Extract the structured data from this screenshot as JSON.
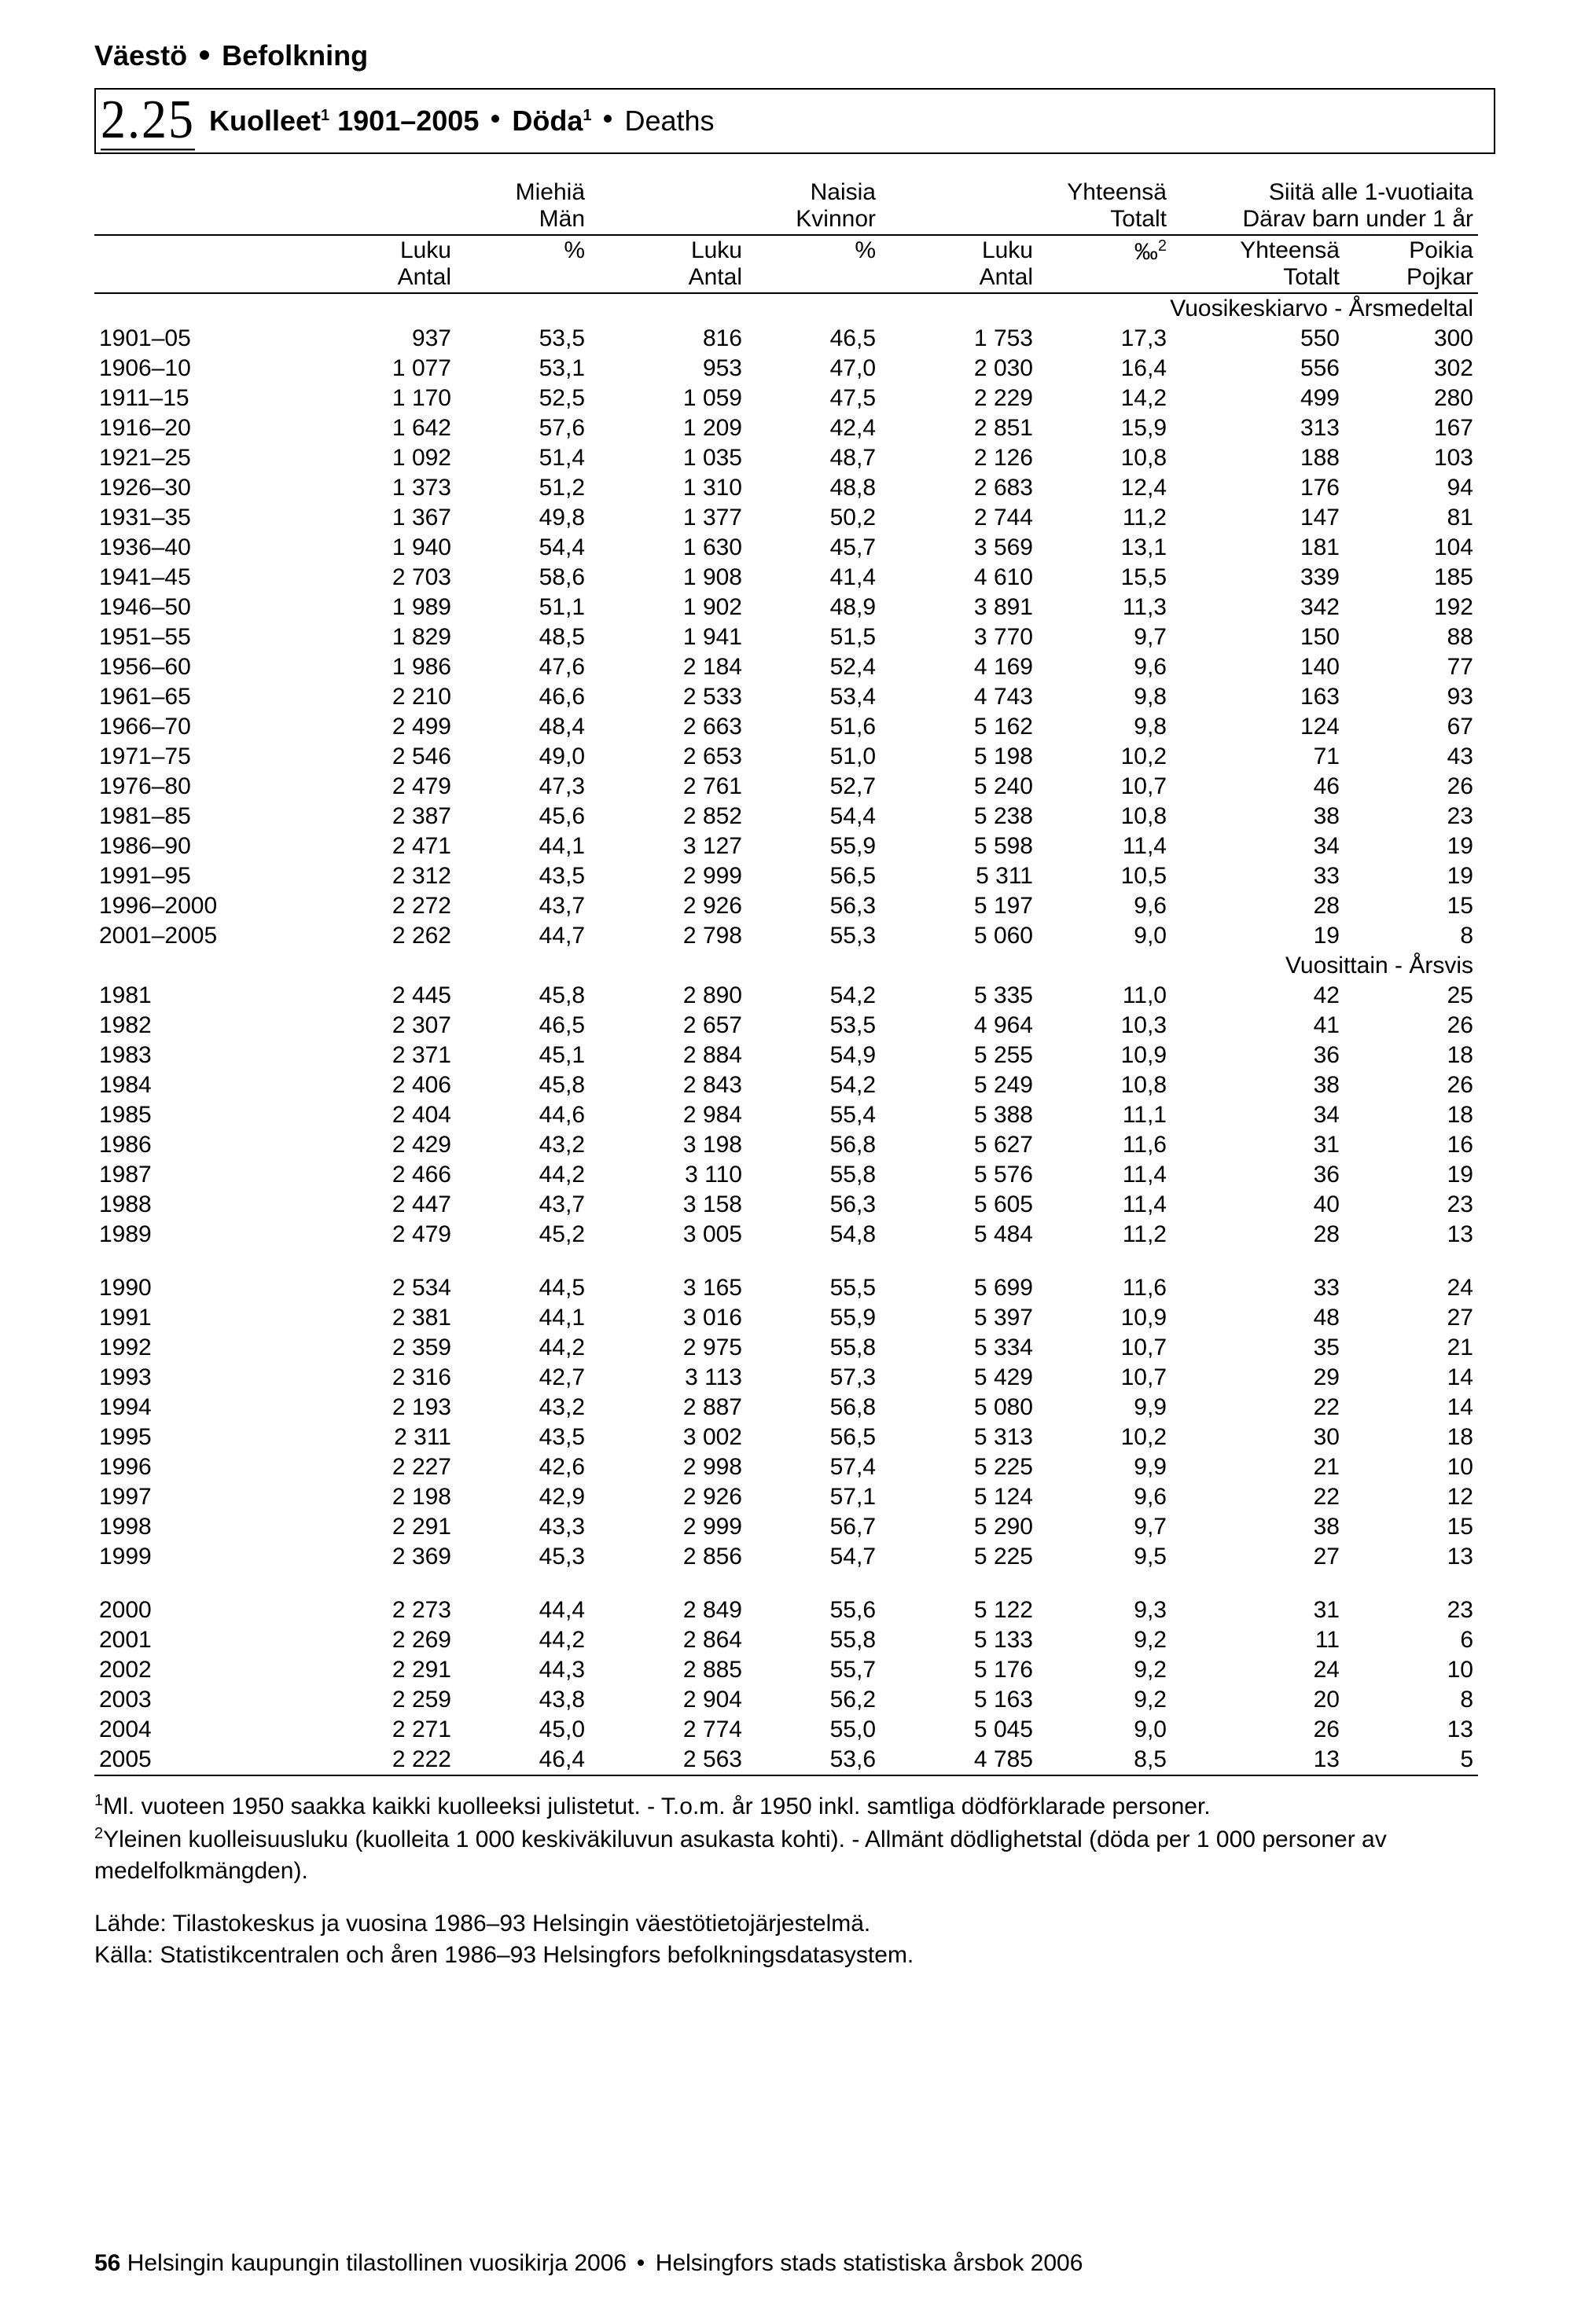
{
  "section_header": {
    "left": "Väestö",
    "right": "Befolkning"
  },
  "table_number": "2.25",
  "title": {
    "part1_bold": "Kuolleet",
    "sup1": "1",
    "part2_bold": " 1901–2005",
    "bullet": "•",
    "part3_bold": "Döda",
    "sup2": "1",
    "part4_normal": "Deaths"
  },
  "headers": {
    "group_men": [
      "Miehiä",
      "Män"
    ],
    "group_women": [
      "Naisia",
      "Kvinnor"
    ],
    "group_total": [
      "Yhteensä",
      "Totalt"
    ],
    "group_under1": [
      "Siitä alle 1-vuotiaita",
      "Därav barn under 1 år"
    ],
    "sub_luku": [
      "Luku",
      "Antal"
    ],
    "sub_pct": "%",
    "sub_permille": "‰",
    "sub_permille_sup": "2",
    "sub_yht": [
      "Yhteensä",
      "Totalt"
    ],
    "sub_poikia": [
      "Poikia",
      "Pojkar"
    ]
  },
  "subheading_avg": "Vuosikeskiarvo - Årsmedeltal",
  "subheading_yearly": "Vuosittain - Årsvis",
  "rows_avg": [
    [
      "1901–05",
      "937",
      "53,5",
      "816",
      "46,5",
      "1 753",
      "17,3",
      "550",
      "300"
    ],
    [
      "1906–10",
      "1 077",
      "53,1",
      "953",
      "47,0",
      "2 030",
      "16,4",
      "556",
      "302"
    ],
    [
      "1911–15",
      "1 170",
      "52,5",
      "1 059",
      "47,5",
      "2 229",
      "14,2",
      "499",
      "280"
    ],
    [
      "1916–20",
      "1 642",
      "57,6",
      "1 209",
      "42,4",
      "2 851",
      "15,9",
      "313",
      "167"
    ],
    [
      "1921–25",
      "1 092",
      "51,4",
      "1 035",
      "48,7",
      "2 126",
      "10,8",
      "188",
      "103"
    ],
    [
      "1926–30",
      "1 373",
      "51,2",
      "1 310",
      "48,8",
      "2 683",
      "12,4",
      "176",
      "94"
    ],
    [
      "1931–35",
      "1 367",
      "49,8",
      "1 377",
      "50,2",
      "2 744",
      "11,2",
      "147",
      "81"
    ],
    [
      "1936–40",
      "1 940",
      "54,4",
      "1 630",
      "45,7",
      "3 569",
      "13,1",
      "181",
      "104"
    ],
    [
      "1941–45",
      "2 703",
      "58,6",
      "1 908",
      "41,4",
      "4 610",
      "15,5",
      "339",
      "185"
    ],
    [
      "1946–50",
      "1 989",
      "51,1",
      "1 902",
      "48,9",
      "3 891",
      "11,3",
      "342",
      "192"
    ],
    [
      "1951–55",
      "1 829",
      "48,5",
      "1 941",
      "51,5",
      "3 770",
      "9,7",
      "150",
      "88"
    ],
    [
      "1956–60",
      "1 986",
      "47,6",
      "2 184",
      "52,4",
      "4 169",
      "9,6",
      "140",
      "77"
    ],
    [
      "1961–65",
      "2 210",
      "46,6",
      "2 533",
      "53,4",
      "4 743",
      "9,8",
      "163",
      "93"
    ],
    [
      "1966–70",
      "2 499",
      "48,4",
      "2 663",
      "51,6",
      "5 162",
      "9,8",
      "124",
      "67"
    ],
    [
      "1971–75",
      "2 546",
      "49,0",
      "2 653",
      "51,0",
      "5 198",
      "10,2",
      "71",
      "43"
    ],
    [
      "1976–80",
      "2 479",
      "47,3",
      "2 761",
      "52,7",
      "5 240",
      "10,7",
      "46",
      "26"
    ],
    [
      "1981–85",
      "2 387",
      "45,6",
      "2 852",
      "54,4",
      "5 238",
      "10,8",
      "38",
      "23"
    ],
    [
      "1986–90",
      "2 471",
      "44,1",
      "3 127",
      "55,9",
      "5 598",
      "11,4",
      "34",
      "19"
    ],
    [
      "1991–95",
      "2 312",
      "43,5",
      "2 999",
      "56,5",
      "5 311",
      "10,5",
      "33",
      "19"
    ],
    [
      "1996–2000",
      "2 272",
      "43,7",
      "2 926",
      "56,3",
      "5 197",
      "9,6",
      "28",
      "15"
    ],
    [
      "2001–2005",
      "2 262",
      "44,7",
      "2 798",
      "55,3",
      "5 060",
      "9,0",
      "19",
      "8"
    ]
  ],
  "rows_yearly": [
    [
      [
        "1981",
        "2 445",
        "45,8",
        "2 890",
        "54,2",
        "5 335",
        "11,0",
        "42",
        "25"
      ],
      [
        "1982",
        "2 307",
        "46,5",
        "2 657",
        "53,5",
        "4 964",
        "10,3",
        "41",
        "26"
      ],
      [
        "1983",
        "2 371",
        "45,1",
        "2 884",
        "54,9",
        "5 255",
        "10,9",
        "36",
        "18"
      ],
      [
        "1984",
        "2 406",
        "45,8",
        "2 843",
        "54,2",
        "5 249",
        "10,8",
        "38",
        "26"
      ],
      [
        "1985",
        "2 404",
        "44,6",
        "2 984",
        "55,4",
        "5 388",
        "11,1",
        "34",
        "18"
      ],
      [
        "1986",
        "2 429",
        "43,2",
        "3 198",
        "56,8",
        "5 627",
        "11,6",
        "31",
        "16"
      ],
      [
        "1987",
        "2 466",
        "44,2",
        "3 110",
        "55,8",
        "5 576",
        "11,4",
        "36",
        "19"
      ],
      [
        "1988",
        "2 447",
        "43,7",
        "3 158",
        "56,3",
        "5 605",
        "11,4",
        "40",
        "23"
      ],
      [
        "1989",
        "2 479",
        "45,2",
        "3 005",
        "54,8",
        "5 484",
        "11,2",
        "28",
        "13"
      ]
    ],
    [
      [
        "1990",
        "2 534",
        "44,5",
        "3 165",
        "55,5",
        "5 699",
        "11,6",
        "33",
        "24"
      ],
      [
        "1991",
        "2 381",
        "44,1",
        "3 016",
        "55,9",
        "5 397",
        "10,9",
        "48",
        "27"
      ],
      [
        "1992",
        "2 359",
        "44,2",
        "2 975",
        "55,8",
        "5 334",
        "10,7",
        "35",
        "21"
      ],
      [
        "1993",
        "2 316",
        "42,7",
        "3 113",
        "57,3",
        "5 429",
        "10,7",
        "29",
        "14"
      ],
      [
        "1994",
        "2 193",
        "43,2",
        "2 887",
        "56,8",
        "5 080",
        "9,9",
        "22",
        "14"
      ],
      [
        "1995",
        "2 311",
        "43,5",
        "3 002",
        "56,5",
        "5 313",
        "10,2",
        "30",
        "18"
      ],
      [
        "1996",
        "2 227",
        "42,6",
        "2 998",
        "57,4",
        "5 225",
        "9,9",
        "21",
        "10"
      ],
      [
        "1997",
        "2 198",
        "42,9",
        "2 926",
        "57,1",
        "5 124",
        "9,6",
        "22",
        "12"
      ],
      [
        "1998",
        "2 291",
        "43,3",
        "2 999",
        "56,7",
        "5 290",
        "9,7",
        "38",
        "15"
      ],
      [
        "1999",
        "2 369",
        "45,3",
        "2 856",
        "54,7",
        "5 225",
        "9,5",
        "27",
        "13"
      ]
    ],
    [
      [
        "2000",
        "2 273",
        "44,4",
        "2 849",
        "55,6",
        "5 122",
        "9,3",
        "31",
        "23"
      ],
      [
        "2001",
        "2 269",
        "44,2",
        "2 864",
        "55,8",
        "5 133",
        "9,2",
        "11",
        "6"
      ],
      [
        "2002",
        "2 291",
        "44,3",
        "2 885",
        "55,7",
        "5 176",
        "9,2",
        "24",
        "10"
      ],
      [
        "2003",
        "2 259",
        "43,8",
        "2 904",
        "56,2",
        "5 163",
        "9,2",
        "20",
        "8"
      ],
      [
        "2004",
        "2 271",
        "45,0",
        "2 774",
        "55,0",
        "5 045",
        "9,0",
        "26",
        "13"
      ],
      [
        "2005",
        "2 222",
        "46,4",
        "2 563",
        "53,6",
        "4 785",
        "8,5",
        "13",
        "5"
      ]
    ]
  ],
  "footnote1": "Ml. vuoteen 1950 saakka kaikki kuolleeksi julistetut. - T.o.m. år 1950 inkl. samtliga dödförklarade personer.",
  "footnote2": "Yleinen kuolleisuusluku (kuolleita 1 000 keskiväkiluvun asukasta kohti). - Allmänt dödlighetstal (döda per 1 000 personer av medelfolkmängden).",
  "source_fi": "Lähde: Tilastokeskus ja vuosina 1986–93 Helsingin väestötietojärjestelmä.",
  "source_sv": "Källa: Statistikcentralen och åren 1986–93 Helsingfors befolkningsdatasystem.",
  "footer": {
    "page_num": "56",
    "text_fi": "Helsingin kaupungin tilastollinen vuosikirja 2006",
    "text_sv": "Helsingfors stads statistiska årsbok 2006"
  }
}
